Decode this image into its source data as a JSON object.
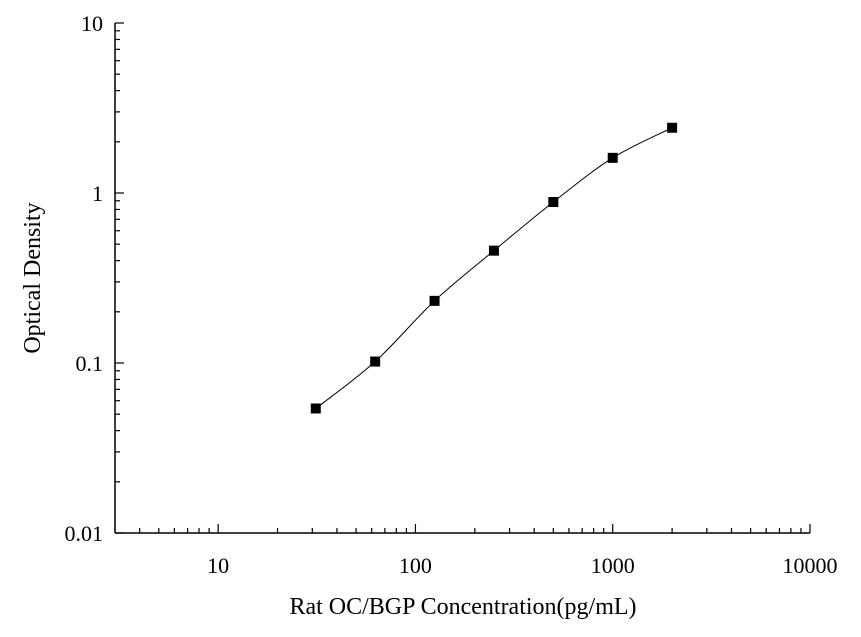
{
  "chart_data": {
    "type": "scatter",
    "title": "",
    "xlabel": "Rat OC/BGP Concentration(pg/mL)",
    "ylabel": "Optical Density",
    "x_scale": "log",
    "y_scale": "log",
    "xlim": [
      3,
      10000
    ],
    "ylim": [
      0.01,
      10
    ],
    "x_tick_labels": [
      "10",
      "100",
      "1000",
      "10000"
    ],
    "x_tick_values": [
      10,
      100,
      1000,
      10000
    ],
    "y_tick_labels": [
      "0.01",
      "0.1",
      "1",
      "10"
    ],
    "y_tick_values": [
      0.01,
      0.1,
      1,
      10
    ],
    "grid": false,
    "legend": "none",
    "series": [
      {
        "x": [
          31.25,
          62.5,
          125,
          250,
          500,
          1000,
          2000
        ],
        "y": [
          0.054,
          0.102,
          0.232,
          0.458,
          0.885,
          1.61,
          2.42
        ],
        "marker": "square",
        "line": "smooth-fit",
        "color": "#000000"
      }
    ]
  }
}
